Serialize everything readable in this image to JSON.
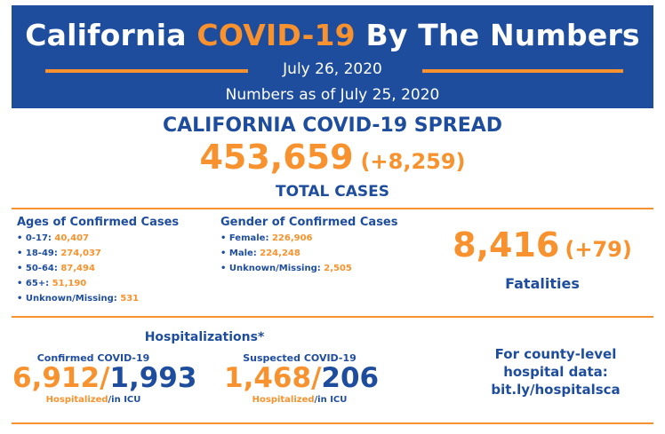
{
  "header": {
    "title_part1": "California ",
    "title_highlight": "COVID-19",
    "title_part2": " By The Numbers",
    "date": "July 26, 2020",
    "as_of": "Numbers as of July 25, 2020"
  },
  "spread": {
    "title": "CALIFORNIA COVID-19 SPREAD",
    "total": "453,659",
    "change": "(+8,259)",
    "label": "TOTAL CASES"
  },
  "ages": {
    "title": "Ages of Confirmed Cases",
    "items": [
      {
        "label": "• 0-17: ",
        "value": "40,407"
      },
      {
        "label": "• 18-49: ",
        "value": "274,037"
      },
      {
        "label": "• 50-64: ",
        "value": "87,494"
      },
      {
        "label": "• 65+: ",
        "value": "51,190"
      },
      {
        "label": "• Unknown/Missing: ",
        "value": "531"
      }
    ]
  },
  "gender": {
    "title": "Gender of Confirmed Cases",
    "items": [
      {
        "label": "• Female: ",
        "value": "226,906"
      },
      {
        "label": "• Male: ",
        "value": "224,248"
      },
      {
        "label": "• Unknown/Missing: ",
        "value": "2,505"
      }
    ]
  },
  "fatalities": {
    "value": "8,416",
    "change": "(+79)",
    "label": "Fatalities"
  },
  "hospitalizations": {
    "title": "Hospitalizations*",
    "confirmed": {
      "label": "Confirmed COVID-19",
      "hospitalized": "6,912",
      "sep": "/",
      "icu": "1,993",
      "cap_hosp": "Hospitalized",
      "cap_icu": "/in ICU"
    },
    "suspected": {
      "label": "Suspected COVID-19",
      "hospitalized": "1,468",
      "sep": "/",
      "icu": "206",
      "cap_hosp": "Hospitalized",
      "cap_icu": "/in ICU"
    }
  },
  "county": {
    "line1": "For county-level",
    "line2": "hospital data:",
    "line3": "bit.ly/hospitalsca"
  }
}
